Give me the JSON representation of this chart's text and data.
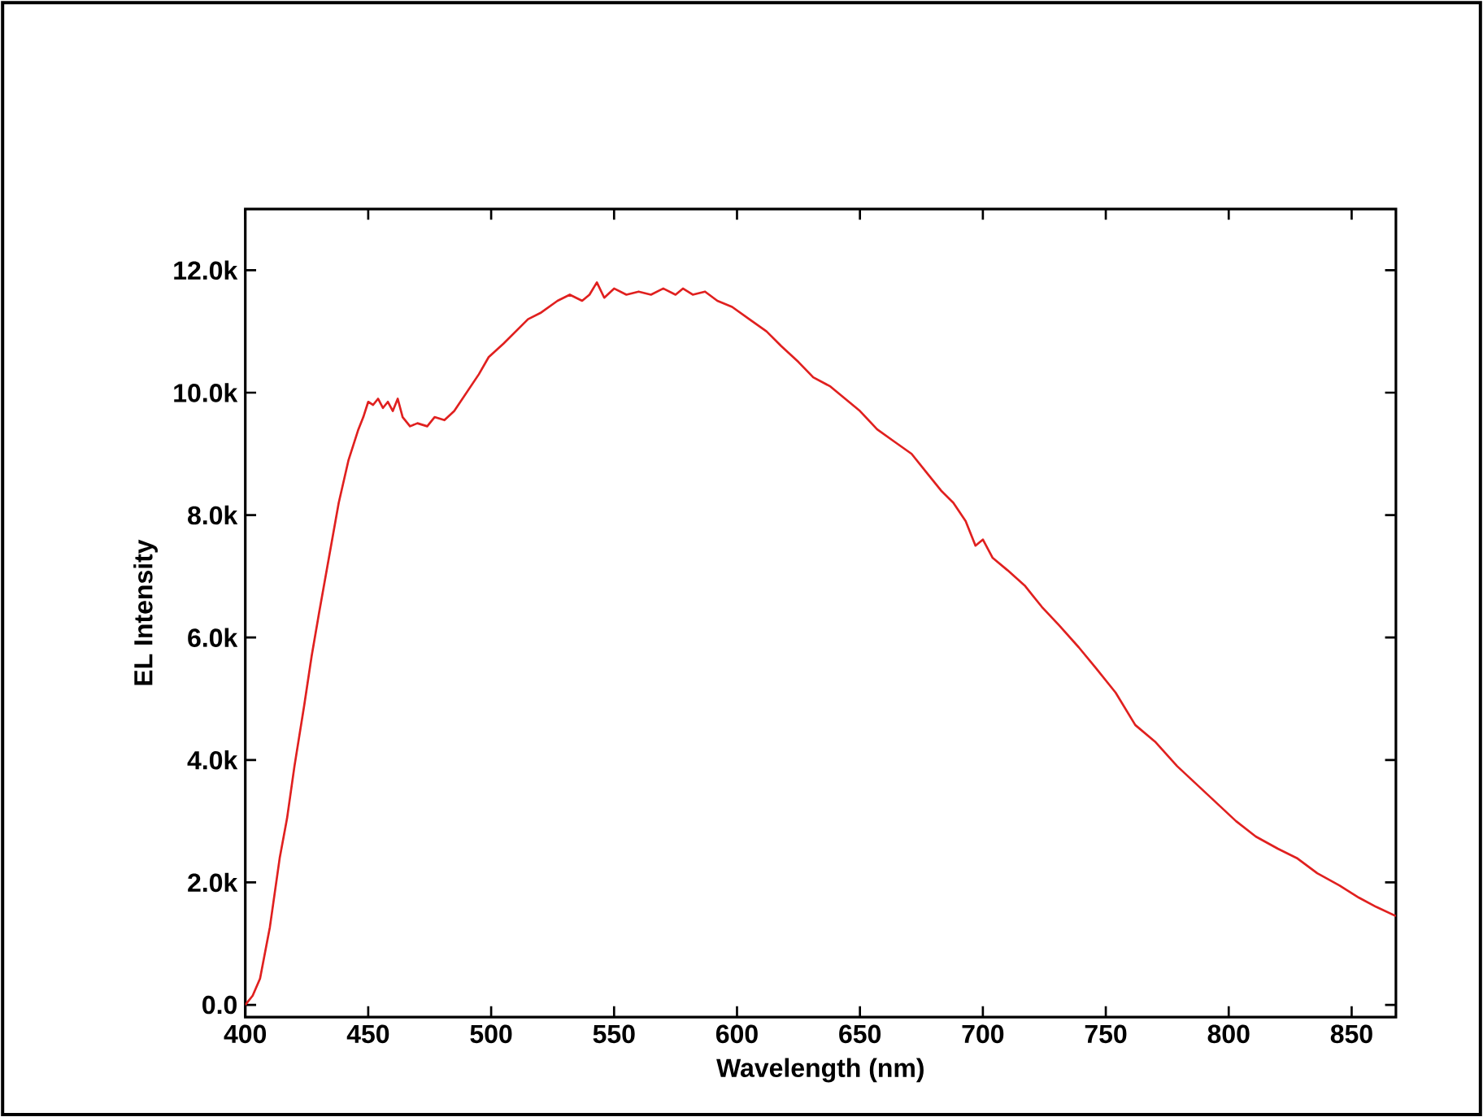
{
  "chart_data": {
    "type": "line",
    "xlabel": "Wavelength (nm)",
    "ylabel": "EL Intensity",
    "x": [
      400,
      403,
      406,
      410,
      414,
      417,
      420,
      424,
      427,
      430,
      434,
      438,
      442,
      446,
      448,
      450,
      452,
      454,
      456,
      458,
      460,
      462,
      464,
      467,
      470,
      474,
      477,
      481,
      485,
      490,
      495,
      499,
      505,
      510,
      515,
      520,
      527,
      532,
      537,
      540,
      543,
      546,
      550,
      555,
      560,
      565,
      570,
      575,
      578,
      582,
      587,
      592,
      598,
      605,
      612,
      618,
      625,
      631,
      638,
      644,
      650,
      657,
      664,
      671,
      677,
      683,
      688,
      693,
      697,
      700,
      704,
      710,
      717,
      724,
      731,
      739,
      746,
      754,
      762,
      770,
      779,
      787,
      795,
      803,
      811,
      820,
      828,
      836,
      845,
      853,
      860,
      868
    ],
    "series": [
      {
        "color": "#e0201f",
        "values": [
          0.0,
          0.15,
          0.43,
          1.27,
          2.4,
          3.05,
          3.9,
          4.9,
          5.7,
          6.4,
          7.3,
          8.2,
          8.9,
          9.4,
          9.6,
          9.85,
          9.8,
          9.9,
          9.75,
          9.85,
          9.7,
          9.9,
          9.6,
          9.45,
          9.5,
          9.45,
          9.6,
          9.55,
          9.7,
          10.0,
          10.3,
          10.58,
          10.8,
          11.0,
          11.2,
          11.3,
          11.5,
          11.6,
          11.5,
          11.6,
          11.8,
          11.55,
          11.7,
          11.6,
          11.65,
          11.6,
          11.7,
          11.6,
          11.7,
          11.6,
          11.65,
          11.5,
          11.4,
          11.2,
          11.0,
          10.76,
          10.5,
          10.25,
          10.1,
          9.9,
          9.7,
          9.4,
          9.2,
          9.0,
          8.7,
          8.4,
          8.2,
          7.9,
          7.5,
          7.6,
          7.3,
          7.1,
          6.85,
          6.5,
          6.2,
          5.84,
          5.5,
          5.1,
          4.57,
          4.3,
          3.9,
          3.6,
          3.3,
          3.0,
          2.75,
          2.55,
          2.39,
          2.15,
          1.95,
          1.75,
          1.6,
          1.45
        ]
      }
    ],
    "xlim": [
      400,
      868
    ],
    "ylim": [
      -0.2,
      13.0
    ],
    "xticks": [
      400,
      450,
      500,
      550,
      600,
      650,
      700,
      750,
      800,
      850
    ],
    "yticks": [
      {
        "value": 0,
        "label": "0.0"
      },
      {
        "value": 2,
        "label": "2.0k"
      },
      {
        "value": 4,
        "label": "4.0k"
      },
      {
        "value": 6,
        "label": "6.0k"
      },
      {
        "value": 8,
        "label": "8.0k"
      },
      {
        "value": 10,
        "label": "10.0k"
      },
      {
        "value": 12,
        "label": "12.0k"
      }
    ],
    "grid": false,
    "marker": "none",
    "line_style": "solid"
  }
}
